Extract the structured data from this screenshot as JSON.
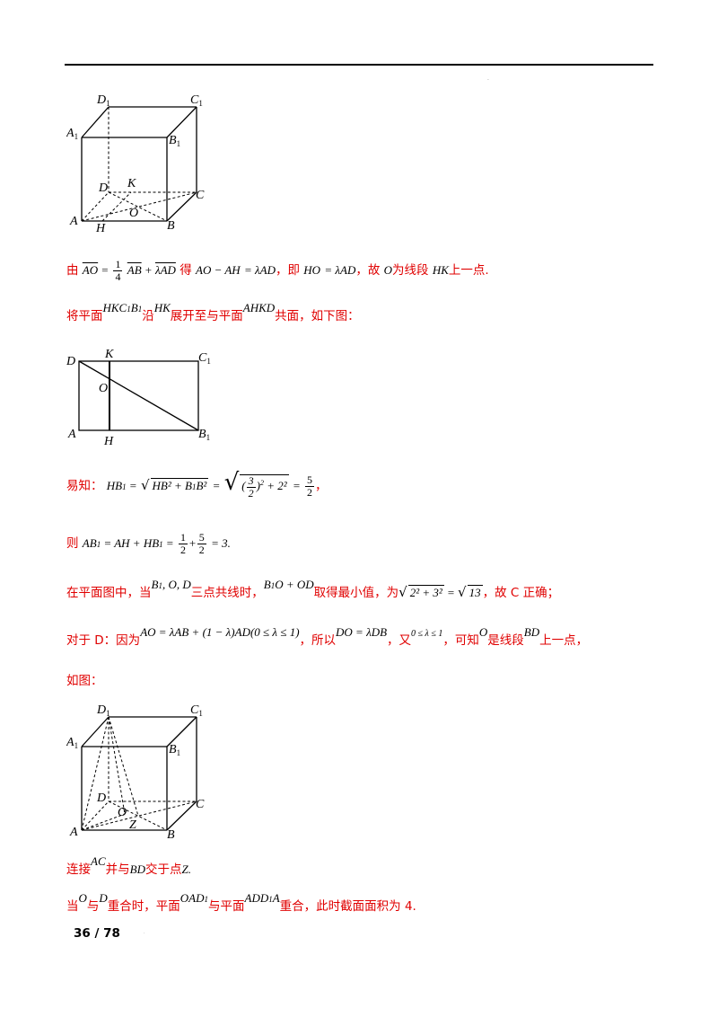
{
  "fig1": {
    "labels": {
      "D1": "D",
      "C1": "C",
      "A1": "A",
      "B1": "B",
      "D": "D",
      "K": "K",
      "C": "C",
      "O": "O",
      "A": "A",
      "H": "H",
      "B": "B"
    },
    "sub1": "1"
  },
  "fig2": {
    "labels": {
      "D": "D",
      "K": "K",
      "C1": "C",
      "O": "O",
      "A": "A",
      "H": "H",
      "B1": "B"
    },
    "sub1": "1"
  },
  "fig3": {
    "labels": {
      "D1": "D",
      "C1": "C",
      "A1": "A",
      "B1": "B",
      "D": "D",
      "C": "C",
      "O": "O",
      "A": "A",
      "Z": "Z",
      "B": "B"
    },
    "sub1": "1"
  },
  "lines": {
    "l1": {
      "t0": "由",
      "t1": "得",
      "t2": "，即",
      "t3": "，故",
      "t4": "为线段",
      "t5": "上一点."
    },
    "l2": {
      "t0": "将平面",
      "t1": "沿",
      "t2": "展开至与平面",
      "t3": "共面，如下图："
    },
    "l3": {
      "t0": "易知：",
      "t1": "，"
    },
    "l4": {
      "t0": "则"
    },
    "l5": {
      "t0": "在平面图中，当",
      "t1": "三点共线时，",
      "t2": "取得最小值，为",
      "t3": "，故 C 正确；"
    },
    "l6": {
      "t0": "对于 D：因为",
      "t1": "，所以",
      "t2": "，又",
      "t3": "，可知",
      "t4": "是线段",
      "t5": "上一点，"
    },
    "l7": {
      "t0": "如图："
    },
    "l8": {
      "t0": "连接",
      "t1": "并与",
      "t2": "交于点"
    },
    "l9": {
      "t0": "当",
      "t1": "与",
      "t2": "重合时，平面",
      "t3": "与平面",
      "t4": "重合，此时截面面积为 4."
    }
  },
  "math": {
    "AO": "AO",
    "eq": "=",
    "frac14n": "1",
    "frac14d": "4",
    "AB": "AB",
    "plus": "+",
    "lamAD": "λAD",
    "AOminus": "AO − AH",
    "eqlamAD": "= λAD",
    "HO": "HO",
    "O": "O",
    "HK": "HK",
    "HKC1B1": "HKC",
    "AHKD": "AHKD",
    "HB1": "HB",
    "HB2": "HB² + B",
    "B2": "B²",
    "half3n": "3",
    "half3d": "2",
    "sq2": "2",
    "plus22": "+ 2²",
    "ans5n": "5",
    "ans5d": "2",
    "AB1": "AB",
    "AHplus": "= AH + HB",
    "frac12n": "1",
    "frac12d": "2",
    "eq3": "= 3",
    "B1OD": "B",
    "OD": ", O, D",
    "B1OplusOD": "O + OD",
    "sqrtexpr": "2² + 3²",
    "sqrt13": "13",
    "AOexpr": "AO = λAB + (1 − λ)AD",
    "range": "(0 ≤ λ ≤ 1)",
    "DOexpr": "DO = λDB",
    "lamrange": "0 ≤ λ ≤ 1",
    "BD": "BD",
    "AC": "AC",
    "Z": "Z",
    "D": "D",
    "OAD1": "OAD",
    "ADD1A": "ADD",
    "A": "A",
    "sub1": "1",
    "dot": "."
  },
  "footer": {
    "page": "36 / 78"
  }
}
